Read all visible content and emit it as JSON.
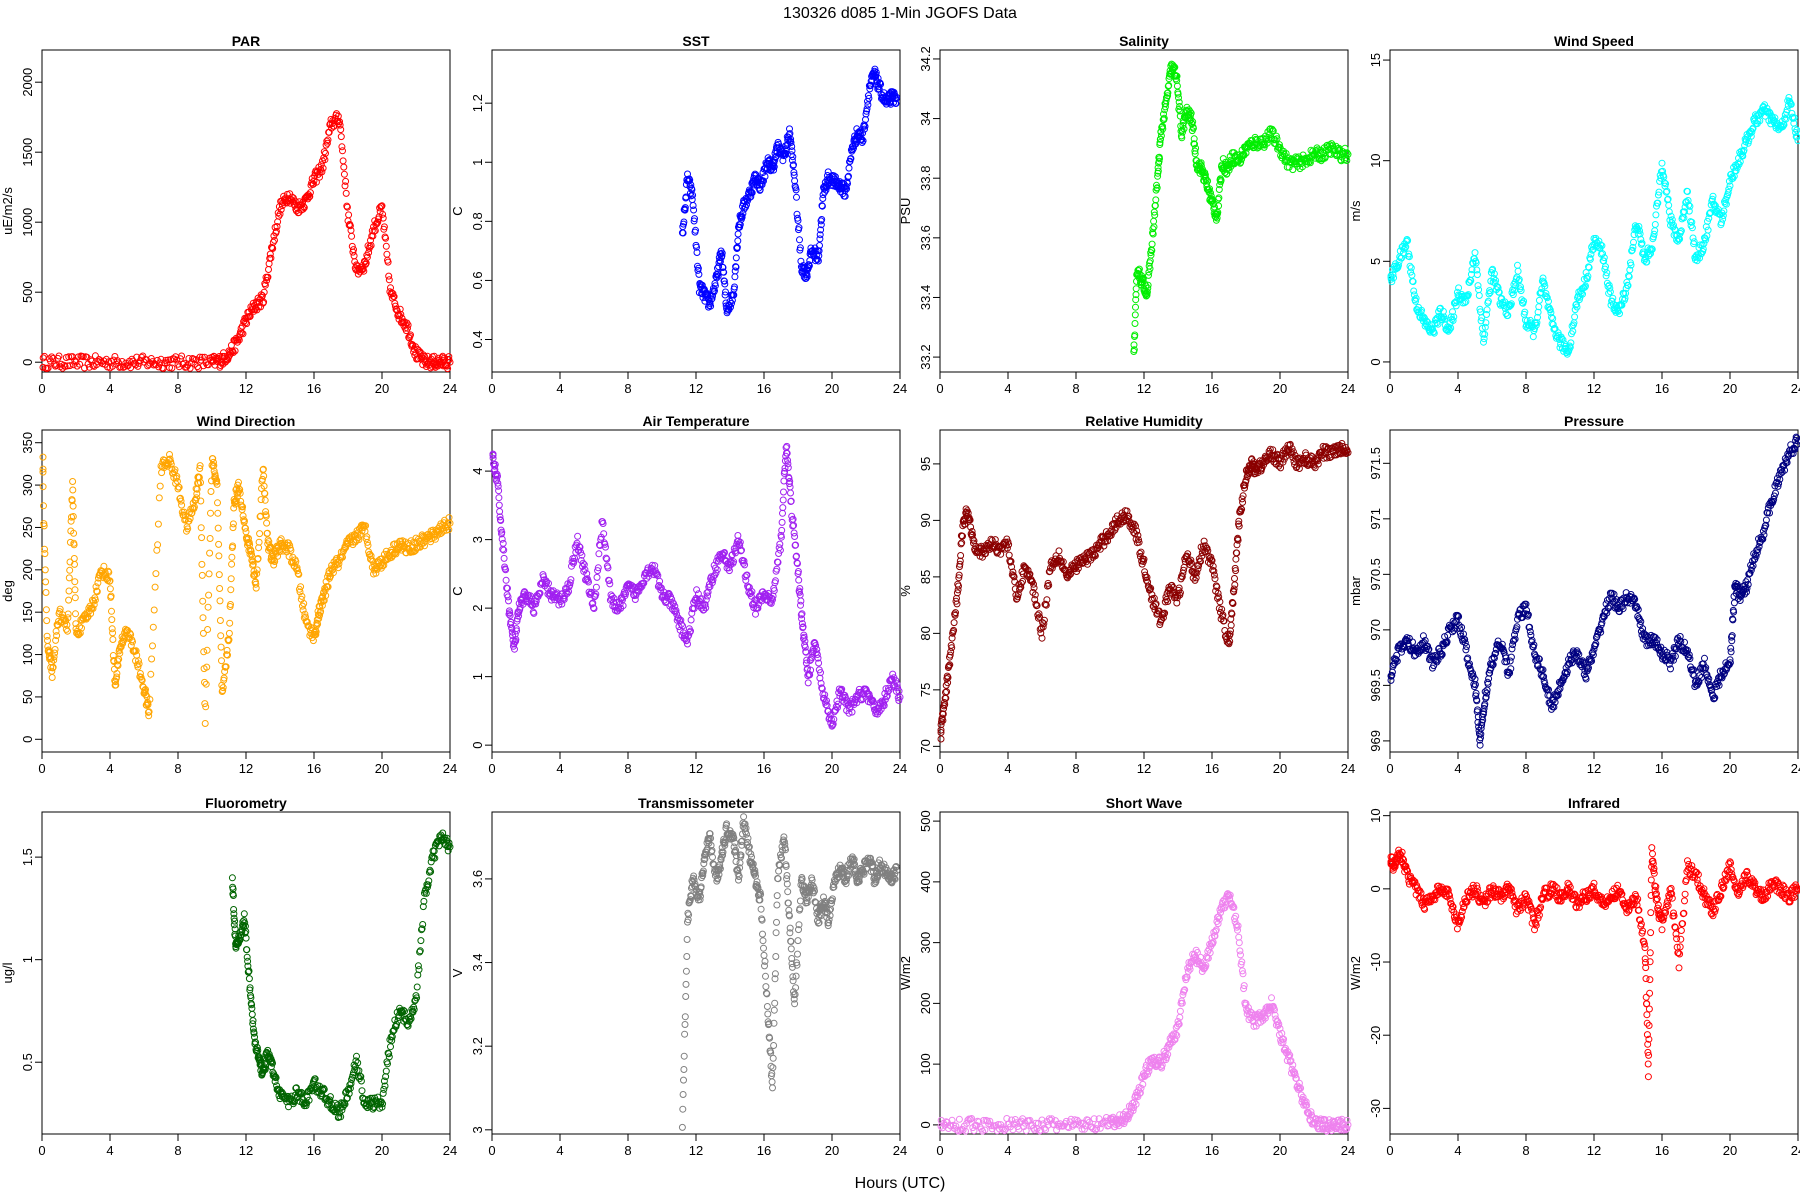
{
  "title": "130326   d085   1-Min  JGOFS Data",
  "xlabel": "Hours (UTC)",
  "chart_data": [
    {
      "type": "scatter",
      "title": "PAR",
      "ylabel": "uE/m2/s",
      "color": "#ff0000",
      "xlim": [
        0,
        24
      ],
      "ylim": [
        -70,
        2230
      ],
      "xticks": [
        0,
        4,
        8,
        12,
        16,
        20,
        24
      ],
      "yticks": [
        0,
        500,
        1000,
        1500,
        2000
      ],
      "x": [
        0,
        1,
        2,
        3,
        4,
        5,
        6,
        7,
        8,
        9,
        10,
        10.5,
        11,
        11.5,
        12,
        12.5,
        13,
        13.5,
        14,
        14.5,
        15,
        15.5,
        16,
        16.5,
        17,
        17.5,
        18,
        18.5,
        19,
        19.5,
        20,
        20.5,
        21,
        21.5,
        22,
        22.5,
        23,
        23.5,
        24
      ],
      "y": [
        0,
        0,
        0,
        0,
        0,
        0,
        0,
        0,
        0,
        0,
        0,
        10,
        60,
        150,
        300,
        400,
        450,
        800,
        1100,
        1200,
        1100,
        1150,
        1300,
        1400,
        1700,
        1750,
        1050,
        650,
        700,
        950,
        1100,
        500,
        350,
        250,
        60,
        0,
        0,
        0,
        0
      ]
    },
    {
      "type": "scatter",
      "title": "SST",
      "ylabel": "C",
      "color": "#0000ff",
      "xlim": [
        0,
        24
      ],
      "ylim": [
        0.29,
        1.38
      ],
      "xticks": [
        0,
        4,
        8,
        12,
        16,
        20,
        24
      ],
      "yticks": [
        0.4,
        0.6,
        0.8,
        1.0,
        1.2
      ],
      "x": [
        11.2,
        11.5,
        11.8,
        12.2,
        12.5,
        12.8,
        13.2,
        13.5,
        13.8,
        14.2,
        14.5,
        14.8,
        15.2,
        15.5,
        15.8,
        16.2,
        16.5,
        16.8,
        17.2,
        17.5,
        17.8,
        18.2,
        18.5,
        18.8,
        19.2,
        19.5,
        19.8,
        20.2,
        20.5,
        20.8,
        21.2,
        21.5,
        21.8,
        22.2,
        22.5,
        22.8,
        23.2,
        23.5,
        23.8
      ],
      "y": [
        0.75,
        0.95,
        0.88,
        0.58,
        0.55,
        0.52,
        0.6,
        0.7,
        0.5,
        0.55,
        0.78,
        0.85,
        0.9,
        0.95,
        0.92,
        1.0,
        0.98,
        1.05,
        1.02,
        1.1,
        0.95,
        0.65,
        0.62,
        0.7,
        0.68,
        0.9,
        0.95,
        0.93,
        0.92,
        0.9,
        1.05,
        1.1,
        1.08,
        1.25,
        1.3,
        1.25,
        1.2,
        1.22,
        1.22
      ]
    },
    {
      "type": "scatter",
      "title": "Salinity",
      "ylabel": "PSU",
      "color": "#00ee00",
      "xlim": [
        0,
        24
      ],
      "ylim": [
        33.15,
        34.23
      ],
      "xticks": [
        0,
        4,
        8,
        12,
        16,
        20,
        24
      ],
      "yticks": [
        33.2,
        33.4,
        33.6,
        33.8,
        34.0,
        34.2
      ],
      "x": [
        11.4,
        11.6,
        11.9,
        12.2,
        12.5,
        12.8,
        13.0,
        13.3,
        13.6,
        13.9,
        14.2,
        14.5,
        14.8,
        15.1,
        15.4,
        15.7,
        16.0,
        16.3,
        16.6,
        16.9,
        17.2,
        17.6,
        18.0,
        18.5,
        19.0,
        19.5,
        20.0,
        20.5,
        21.0,
        21.5,
        22.0,
        22.5,
        23.0,
        23.5,
        24.0
      ],
      "y": [
        33.2,
        33.5,
        33.45,
        33.42,
        33.6,
        33.8,
        33.95,
        34.05,
        34.17,
        34.15,
        33.95,
        34.02,
        34.0,
        33.85,
        33.83,
        33.78,
        33.72,
        33.67,
        33.85,
        33.83,
        33.87,
        33.86,
        33.9,
        33.92,
        33.92,
        33.95,
        33.9,
        33.85,
        33.85,
        33.86,
        33.88,
        33.88,
        33.9,
        33.88,
        33.88
      ]
    },
    {
      "type": "scatter",
      "title": "Wind Speed",
      "ylabel": "m/s",
      "color": "#00ffff",
      "xlim": [
        0,
        24
      ],
      "ylim": [
        -0.5,
        15.5
      ],
      "xticks": [
        0,
        4,
        8,
        12,
        16,
        20,
        24
      ],
      "yticks": [
        0,
        5,
        10,
        15
      ],
      "x": [
        0,
        0.5,
        1,
        1.5,
        2,
        2.5,
        3,
        3.5,
        4,
        4.5,
        5,
        5.5,
        6,
        6.5,
        7,
        7.5,
        8,
        8.5,
        9,
        9.5,
        10,
        10.5,
        11,
        11.5,
        12,
        12.5,
        13,
        13.5,
        14,
        14.5,
        15,
        15.5,
        16,
        16.5,
        17,
        17.5,
        18,
        18.5,
        19,
        19.5,
        20,
        20.5,
        21,
        21.5,
        22,
        22.5,
        23,
        23.5,
        24
      ],
      "y": [
        4,
        5,
        6,
        3,
        2,
        1.5,
        2.5,
        1.5,
        3.5,
        3,
        5.5,
        1,
        4.5,
        3,
        2.5,
        4.5,
        2,
        1.5,
        4,
        2,
        1,
        0.5,
        3,
        4,
        6,
        5.5,
        3,
        2.5,
        4,
        7,
        5,
        6,
        10,
        7,
        6,
        8.5,
        5,
        6,
        8,
        7,
        9,
        10,
        11,
        12,
        12.5,
        12,
        11.5,
        13,
        11
      ]
    },
    {
      "type": "scatter",
      "title": "Wind Direction",
      "ylabel": "deg",
      "color": "#ffa500",
      "xlim": [
        0,
        24
      ],
      "ylim": [
        -15,
        365
      ],
      "xticks": [
        0,
        4,
        8,
        12,
        16,
        20,
        24
      ],
      "yticks": [
        0,
        50,
        100,
        150,
        200,
        250,
        300,
        350
      ],
      "x": [
        0,
        0.3,
        0.6,
        1,
        1.5,
        1.8,
        2,
        2.5,
        3,
        3.5,
        4,
        4.3,
        4.6,
        5,
        5.5,
        6,
        6.3,
        7,
        7.5,
        8,
        8.5,
        9,
        9.3,
        9.6,
        10,
        10.3,
        10.6,
        11,
        11.3,
        11.6,
        12,
        12.3,
        12.6,
        13,
        13.3,
        13.6,
        14,
        14.5,
        15,
        15.5,
        16,
        16.3,
        16.6,
        17,
        17.5,
        18,
        18.5,
        19,
        19.5,
        20,
        20.5,
        21,
        21.5,
        22,
        22.5,
        23,
        23.5,
        24
      ],
      "y": [
        340,
        120,
        80,
        150,
        130,
        300,
        125,
        140,
        160,
        200,
        190,
        60,
        110,
        130,
        100,
        60,
        30,
        320,
        330,
        300,
        250,
        280,
        320,
        20,
        330,
        300,
        50,
        120,
        280,
        300,
        240,
        220,
        180,
        320,
        230,
        210,
        230,
        225,
        200,
        140,
        120,
        150,
        170,
        200,
        210,
        230,
        240,
        250,
        200,
        210,
        220,
        230,
        225,
        230,
        235,
        240,
        250,
        255
      ]
    },
    {
      "type": "scatter",
      "title": "Air Temperature",
      "ylabel": "C",
      "color": "#a020f0",
      "xlim": [
        0,
        24
      ],
      "ylim": [
        -0.1,
        4.6
      ],
      "xticks": [
        0,
        4,
        8,
        12,
        16,
        20,
        24
      ],
      "yticks": [
        0,
        1,
        2,
        3,
        4
      ],
      "x": [
        0,
        0.3,
        0.6,
        1,
        1.3,
        1.6,
        2,
        2.5,
        3,
        3.5,
        4,
        4.5,
        5,
        5.5,
        6,
        6.5,
        7,
        7.5,
        8,
        8.5,
        9,
        9.5,
        10,
        10.5,
        11,
        11.5,
        12,
        12.5,
        13,
        13.5,
        14,
        14.5,
        15,
        15.5,
        16,
        16.5,
        17,
        17.3,
        17.6,
        18,
        18.3,
        18.6,
        19,
        19.5,
        20,
        20.5,
        21,
        21.5,
        22,
        22.5,
        23,
        23.5,
        24
      ],
      "y": [
        4.2,
        3.9,
        3.0,
        2.0,
        1.4,
        2.0,
        2.2,
        2.0,
        2.4,
        2.2,
        2.1,
        2.3,
        3.0,
        2.5,
        2.0,
        3.3,
        2.1,
        2.0,
        2.3,
        2.2,
        2.5,
        2.6,
        2.2,
        2.1,
        1.8,
        1.5,
        2.2,
        2.0,
        2.5,
        2.8,
        2.6,
        3.0,
        2.4,
        2.0,
        2.2,
        2.1,
        3.0,
        4.4,
        3.5,
        2.5,
        1.7,
        1.0,
        1.5,
        0.7,
        0.3,
        0.8,
        0.5,
        0.7,
        0.8,
        0.5,
        0.6,
        1.0,
        0.7
      ]
    },
    {
      "type": "scatter",
      "title": "Relative Humidity",
      "ylabel": "%",
      "color": "#8b0000",
      "xlim": [
        0,
        24
      ],
      "ylim": [
        69.5,
        98
      ],
      "xticks": [
        0,
        4,
        8,
        12,
        16,
        20,
        24
      ],
      "yticks": [
        70,
        75,
        80,
        85,
        90,
        95
      ],
      "x": [
        0,
        0.3,
        0.6,
        1,
        1.3,
        1.6,
        2,
        2.5,
        3,
        3.5,
        4,
        4.5,
        5,
        5.5,
        6,
        6.5,
        7,
        7.5,
        8,
        8.5,
        9,
        9.5,
        10,
        10.5,
        11,
        11.5,
        12,
        12.5,
        13,
        13.5,
        14,
        14.5,
        15,
        15.5,
        16,
        16.5,
        17,
        17.3,
        17.6,
        18,
        18.3,
        18.6,
        19,
        19.5,
        20,
        20.5,
        21,
        21.5,
        22,
        22.5,
        23,
        23.5,
        24
      ],
      "y": [
        71,
        74,
        78,
        83,
        89,
        91,
        88,
        87,
        88,
        87.5,
        88,
        83,
        86,
        84,
        80,
        86,
        87,
        85,
        86,
        86.5,
        87,
        88,
        89,
        90,
        90.5,
        89,
        86,
        83,
        81,
        84,
        83,
        87,
        85,
        88,
        86,
        82,
        79,
        84,
        90,
        94,
        95,
        94.5,
        95,
        96,
        95,
        96.5,
        95,
        95.5,
        95,
        96,
        96,
        96.5,
        96
      ]
    },
    {
      "type": "scatter",
      "title": "Pressure",
      "ylabel": "mbar",
      "color": "#000080",
      "xlim": [
        0,
        24
      ],
      "ylim": [
        968.9,
        971.8
      ],
      "xticks": [
        0,
        4,
        8,
        12,
        16,
        20,
        24
      ],
      "yticks": [
        969.0,
        969.5,
        970.0,
        970.5,
        971.0,
        971.5
      ],
      "x": [
        0,
        0.5,
        1,
        1.5,
        2,
        2.5,
        3,
        3.5,
        4,
        4.5,
        5,
        5.3,
        5.6,
        6,
        6.5,
        7,
        7.5,
        8,
        8.5,
        9,
        9.5,
        10,
        10.5,
        11,
        11.5,
        12,
        12.5,
        13,
        13.5,
        14,
        14.5,
        15,
        15.5,
        16,
        16.5,
        17,
        17.5,
        18,
        18.5,
        19,
        19.5,
        20,
        20.3,
        20.6,
        21,
        21.5,
        22,
        22.5,
        23,
        23.5,
        24
      ],
      "y": [
        969.6,
        969.8,
        969.9,
        969.8,
        969.9,
        969.7,
        969.8,
        970.0,
        970.1,
        969.8,
        969.5,
        969.0,
        969.4,
        969.7,
        969.9,
        969.6,
        970.1,
        970.2,
        969.8,
        969.6,
        969.3,
        969.5,
        969.7,
        969.8,
        969.6,
        969.8,
        970.1,
        970.3,
        970.2,
        970.3,
        970.2,
        969.9,
        969.9,
        969.8,
        969.7,
        969.9,
        969.8,
        969.5,
        969.7,
        969.4,
        969.6,
        969.7,
        970.4,
        970.3,
        970.4,
        970.7,
        970.9,
        971.2,
        971.4,
        971.6,
        971.7
      ]
    },
    {
      "type": "scatter",
      "title": "Fluorometry",
      "ylabel": "ug/l",
      "color": "#006400",
      "xlim": [
        0,
        24
      ],
      "ylim": [
        0.15,
        1.72
      ],
      "xticks": [
        0,
        4,
        8,
        12,
        16,
        20,
        24
      ],
      "yticks": [
        0.5,
        1.0,
        1.5
      ],
      "x": [
        11.2,
        11.4,
        11.6,
        11.9,
        12.2,
        12.5,
        12.8,
        13.0,
        13.3,
        13.6,
        14.0,
        14.5,
        15.0,
        15.5,
        16.0,
        16.5,
        17.0,
        17.5,
        18.0,
        18.5,
        19.0,
        19.5,
        20.0,
        20.5,
        21.0,
        21.5,
        22.0,
        22.5,
        23.0,
        23.5,
        24.0
      ],
      "y": [
        1.4,
        1.05,
        1.1,
        1.2,
        0.9,
        0.6,
        0.5,
        0.45,
        0.55,
        0.45,
        0.35,
        0.3,
        0.35,
        0.3,
        0.4,
        0.35,
        0.3,
        0.25,
        0.35,
        0.5,
        0.3,
        0.3,
        0.3,
        0.6,
        0.75,
        0.7,
        0.8,
        1.3,
        1.5,
        1.6,
        1.55
      ]
    },
    {
      "type": "scatter",
      "title": "Transmissometer",
      "ylabel": "V",
      "color": "#808080",
      "xlim": [
        0,
        24
      ],
      "ylim": [
        2.99,
        3.76
      ],
      "xticks": [
        0,
        4,
        8,
        12,
        16,
        20,
        24
      ],
      "yticks": [
        3.0,
        3.2,
        3.4,
        3.6
      ],
      "x": [
        11.2,
        11.5,
        11.8,
        12.2,
        12.5,
        12.8,
        13.2,
        13.5,
        13.8,
        14.2,
        14.5,
        14.8,
        15.2,
        15.5,
        15.8,
        16.2,
        16.5,
        16.8,
        17.2,
        17.5,
        17.8,
        18.2,
        18.5,
        18.8,
        19.2,
        19.5,
        19.8,
        20.2,
        20.5,
        20.8,
        21.2,
        21.5,
        21.8,
        22.2,
        22.5,
        22.8,
        23.2,
        23.5,
        23.8
      ],
      "y": [
        3.0,
        3.5,
        3.6,
        3.55,
        3.65,
        3.7,
        3.6,
        3.65,
        3.72,
        3.7,
        3.6,
        3.74,
        3.65,
        3.6,
        3.55,
        3.3,
        3.1,
        3.6,
        3.7,
        3.5,
        3.3,
        3.6,
        3.55,
        3.6,
        3.5,
        3.55,
        3.5,
        3.6,
        3.62,
        3.6,
        3.65,
        3.6,
        3.62,
        3.65,
        3.6,
        3.63,
        3.62,
        3.6,
        3.62
      ]
    },
    {
      "type": "scatter",
      "title": "Short Wave",
      "ylabel": "W/m2",
      "color": "#ee82ee",
      "xlim": [
        0,
        24
      ],
      "ylim": [
        -15,
        515
      ],
      "xticks": [
        0,
        4,
        8,
        12,
        16,
        20,
        24
      ],
      "yticks": [
        0,
        100,
        200,
        300,
        400,
        500
      ],
      "x": [
        0,
        1,
        2,
        3,
        4,
        5,
        6,
        7,
        8,
        9,
        10,
        10.5,
        11,
        11.5,
        12,
        12.5,
        13,
        13.5,
        14,
        14.5,
        15,
        15.5,
        16,
        16.5,
        17,
        17.5,
        18,
        18.5,
        19,
        19.5,
        20,
        20.5,
        21,
        21.5,
        22,
        22.5,
        23,
        23.5,
        24
      ],
      "y": [
        0,
        0,
        0,
        0,
        0,
        0,
        0,
        0,
        0,
        0,
        2,
        5,
        15,
        40,
        80,
        110,
        100,
        130,
        160,
        250,
        280,
        260,
        300,
        350,
        380,
        330,
        190,
        170,
        180,
        200,
        150,
        110,
        70,
        30,
        5,
        0,
        0,
        0,
        0
      ]
    },
    {
      "type": "scatter",
      "title": "Infrared",
      "ylabel": "W/m2",
      "color": "#ff0000",
      "xlim": [
        0,
        24
      ],
      "ylim": [
        -33.5,
        10.5
      ],
      "xticks": [
        0,
        4,
        8,
        12,
        16,
        20,
        24
      ],
      "yticks": [
        -30,
        -20,
        -10,
        0,
        10
      ],
      "x": [
        0,
        0.3,
        0.6,
        1,
        1.5,
        2,
        2.5,
        3,
        3.5,
        4,
        4.5,
        5,
        5.5,
        6,
        6.5,
        7,
        7.5,
        8,
        8.5,
        9,
        9.5,
        10,
        10.5,
        11,
        11.5,
        12,
        12.5,
        13,
        13.5,
        14,
        14.5,
        15,
        15.2,
        15.4,
        15.7,
        16,
        16.5,
        17,
        17.5,
        18,
        18.5,
        19,
        19.5,
        20,
        20.5,
        21,
        21.5,
        22,
        22.5,
        23,
        23.5,
        24
      ],
      "y": [
        4,
        3,
        5,
        2,
        0,
        -2,
        -1,
        0,
        -1,
        -5,
        -1,
        0,
        -2,
        0,
        -1,
        0,
        -3,
        -1,
        -5,
        -1,
        0,
        -1,
        0,
        -2,
        -1,
        0,
        -2,
        -1,
        0,
        -3,
        -1,
        -8,
        -25,
        5,
        -2,
        -5,
        0,
        -10,
        3,
        2,
        -1,
        -3,
        0,
        3,
        -1,
        2,
        0,
        -1,
        1,
        0,
        -1,
        0
      ]
    }
  ]
}
